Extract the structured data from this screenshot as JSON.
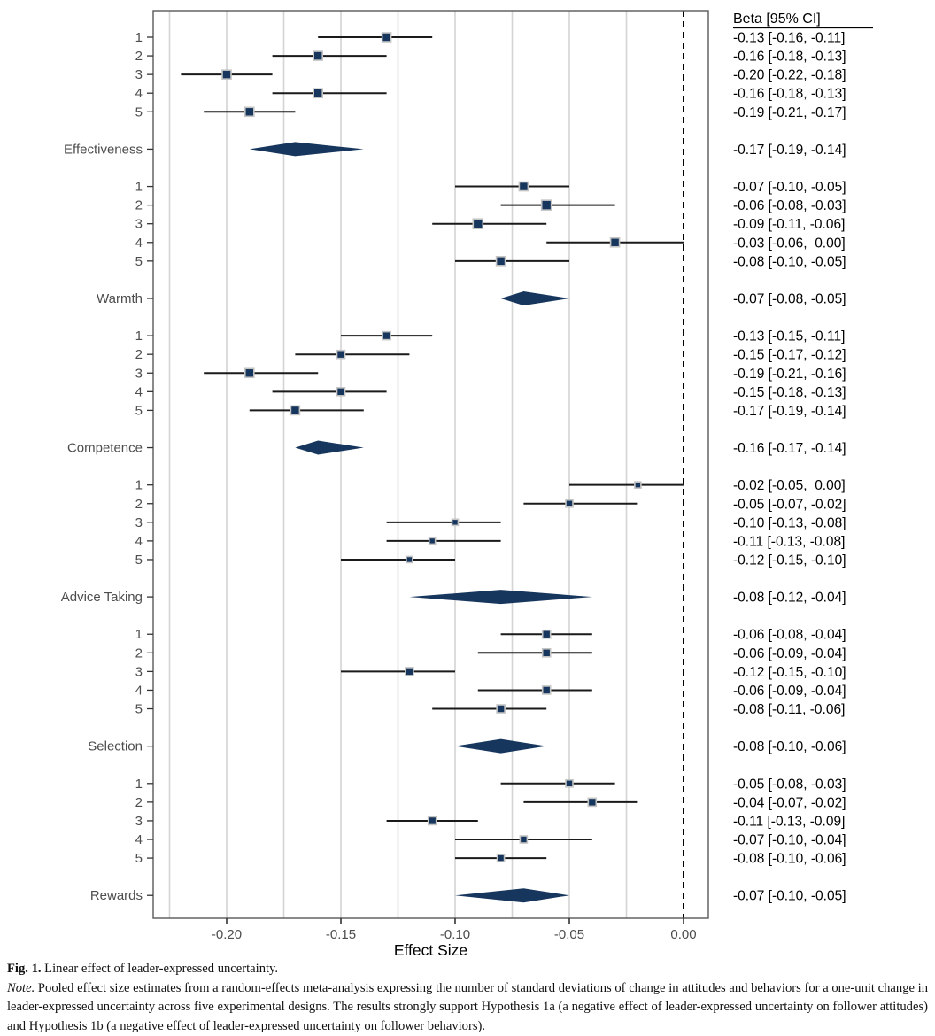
{
  "chart_data": {
    "type": "forest",
    "xlabel": "Effect Size",
    "column_header": "Beta [95% CI]",
    "x_ticks": [
      -0.2,
      -0.15,
      -0.1,
      -0.05,
      0.0
    ],
    "x_tick_labels": [
      "-0.20",
      "-0.15",
      "-0.10",
      "-0.05",
      "0.00"
    ],
    "xlim": [
      -0.232,
      0.011
    ],
    "gridlines": [
      -0.225,
      -0.2,
      -0.175,
      -0.15,
      -0.125,
      -0.1,
      -0.075,
      -0.05,
      -0.025
    ],
    "zero_line": 0.0,
    "grid_on": true,
    "colors": {
      "marker": "#17365d",
      "marker_stroke": "#c4c4c4",
      "ci_line": "#1a1a1a",
      "grid": "#d4d4d4",
      "panel_border": "#595959",
      "axis_text": "#4d4d4d",
      "label_text": "#4d4d4d",
      "beta_text": "#000000",
      "zero_line": "#000000",
      "tick": "#333333"
    },
    "groups": [
      {
        "name": "Effectiveness",
        "studies": [
          {
            "label": "1",
            "beta": -0.13,
            "lo": -0.16,
            "hi": -0.11,
            "size": 10,
            "text": "-0.13 [-0.16, -0.11]"
          },
          {
            "label": "2",
            "beta": -0.16,
            "lo": -0.18,
            "hi": -0.13,
            "size": 10,
            "text": "-0.16 [-0.18, -0.13]"
          },
          {
            "label": "3",
            "beta": -0.2,
            "lo": -0.22,
            "hi": -0.18,
            "size": 10,
            "text": "-0.20 [-0.22, -0.18]"
          },
          {
            "label": "4",
            "beta": -0.16,
            "lo": -0.18,
            "hi": -0.13,
            "size": 10,
            "text": "-0.16 [-0.18, -0.13]"
          },
          {
            "label": "5",
            "beta": -0.19,
            "lo": -0.21,
            "hi": -0.17,
            "size": 10,
            "text": "-0.19 [-0.21, -0.17]"
          }
        ],
        "summary": {
          "beta": -0.17,
          "lo": -0.19,
          "hi": -0.14,
          "text": "-0.17 [-0.19, -0.14]"
        }
      },
      {
        "name": "Warmth",
        "studies": [
          {
            "label": "1",
            "beta": -0.07,
            "lo": -0.1,
            "hi": -0.05,
            "size": 10,
            "text": "-0.07 [-0.10, -0.05]"
          },
          {
            "label": "2",
            "beta": -0.06,
            "lo": -0.08,
            "hi": -0.03,
            "size": 11,
            "text": "-0.06 [-0.08, -0.03]"
          },
          {
            "label": "3",
            "beta": -0.09,
            "lo": -0.11,
            "hi": -0.06,
            "size": 11,
            "text": "-0.09 [-0.11, -0.06]"
          },
          {
            "label": "4",
            "beta": -0.03,
            "lo": -0.06,
            "hi": 0.0,
            "size": 10,
            "text": "-0.03 [-0.06,  0.00]"
          },
          {
            "label": "5",
            "beta": -0.08,
            "lo": -0.1,
            "hi": -0.05,
            "size": 10,
            "text": "-0.08 [-0.10, -0.05]"
          }
        ],
        "summary": {
          "beta": -0.07,
          "lo": -0.08,
          "hi": -0.05,
          "text": "-0.07 [-0.08, -0.05]"
        }
      },
      {
        "name": "Competence",
        "studies": [
          {
            "label": "1",
            "beta": -0.13,
            "lo": -0.15,
            "hi": -0.11,
            "size": 9,
            "text": "-0.13 [-0.15, -0.11]"
          },
          {
            "label": "2",
            "beta": -0.15,
            "lo": -0.17,
            "hi": -0.12,
            "size": 9,
            "text": "-0.15 [-0.17, -0.12]"
          },
          {
            "label": "3",
            "beta": -0.19,
            "lo": -0.21,
            "hi": -0.16,
            "size": 10,
            "text": "-0.19 [-0.21, -0.16]"
          },
          {
            "label": "4",
            "beta": -0.15,
            "lo": -0.18,
            "hi": -0.13,
            "size": 9,
            "text": "-0.15 [-0.18, -0.13]"
          },
          {
            "label": "5",
            "beta": -0.17,
            "lo": -0.19,
            "hi": -0.14,
            "size": 10,
            "text": "-0.17 [-0.19, -0.14]"
          }
        ],
        "summary": {
          "beta": -0.16,
          "lo": -0.17,
          "hi": -0.14,
          "text": "-0.16 [-0.17, -0.14]"
        }
      },
      {
        "name": "Advice Taking",
        "studies": [
          {
            "label": "1",
            "beta": -0.02,
            "lo": -0.05,
            "hi": 0.0,
            "size": 7,
            "text": "-0.02 [-0.05,  0.00]"
          },
          {
            "label": "2",
            "beta": -0.05,
            "lo": -0.07,
            "hi": -0.02,
            "size": 8,
            "text": "-0.05 [-0.07, -0.02]"
          },
          {
            "label": "3",
            "beta": -0.1,
            "lo": -0.13,
            "hi": -0.08,
            "size": 7,
            "text": "-0.10 [-0.13, -0.08]"
          },
          {
            "label": "4",
            "beta": -0.11,
            "lo": -0.13,
            "hi": -0.08,
            "size": 7,
            "text": "-0.11 [-0.13, -0.08]"
          },
          {
            "label": "5",
            "beta": -0.12,
            "lo": -0.15,
            "hi": -0.1,
            "size": 7,
            "text": "-0.12 [-0.15, -0.10]"
          }
        ],
        "summary": {
          "beta": -0.08,
          "lo": -0.12,
          "hi": -0.04,
          "text": "-0.08 [-0.12, -0.04]"
        }
      },
      {
        "name": "Selection",
        "studies": [
          {
            "label": "1",
            "beta": -0.06,
            "lo": -0.08,
            "hi": -0.04,
            "size": 9,
            "text": "-0.06 [-0.08, -0.04]"
          },
          {
            "label": "2",
            "beta": -0.06,
            "lo": -0.09,
            "hi": -0.04,
            "size": 9,
            "text": "-0.06 [-0.09, -0.04]"
          },
          {
            "label": "3",
            "beta": -0.12,
            "lo": -0.15,
            "hi": -0.1,
            "size": 9,
            "text": "-0.12 [-0.15, -0.10]"
          },
          {
            "label": "4",
            "beta": -0.06,
            "lo": -0.09,
            "hi": -0.04,
            "size": 9,
            "text": "-0.06 [-0.09, -0.04]"
          },
          {
            "label": "5",
            "beta": -0.08,
            "lo": -0.11,
            "hi": -0.06,
            "size": 9,
            "text": "-0.08 [-0.11, -0.06]"
          }
        ],
        "summary": {
          "beta": -0.08,
          "lo": -0.1,
          "hi": -0.06,
          "text": "-0.08 [-0.10, -0.06]"
        }
      },
      {
        "name": "Rewards",
        "studies": [
          {
            "label": "1",
            "beta": -0.05,
            "lo": -0.08,
            "hi": -0.03,
            "size": 8,
            "text": "-0.05 [-0.08, -0.03]"
          },
          {
            "label": "2",
            "beta": -0.04,
            "lo": -0.07,
            "hi": -0.02,
            "size": 9,
            "text": "-0.04 [-0.07, -0.02]"
          },
          {
            "label": "3",
            "beta": -0.11,
            "lo": -0.13,
            "hi": -0.09,
            "size": 9,
            "text": "-0.11 [-0.13, -0.09]"
          },
          {
            "label": "4",
            "beta": -0.07,
            "lo": -0.1,
            "hi": -0.04,
            "size": 8,
            "text": "-0.07 [-0.10, -0.04]"
          },
          {
            "label": "5",
            "beta": -0.08,
            "lo": -0.1,
            "hi": -0.06,
            "size": 8,
            "text": "-0.08 [-0.10, -0.06]"
          }
        ],
        "summary": {
          "beta": -0.07,
          "lo": -0.1,
          "hi": -0.05,
          "text": "-0.07 [-0.10, -0.05]"
        }
      }
    ]
  },
  "caption": {
    "fig_label": "Fig. 1.",
    "fig_title": "Linear effect of leader-expressed uncertainty.",
    "note_label": "Note.",
    "note_text": "Pooled effect size estimates from a random-effects meta-analysis expressing the number of standard deviations of change in attitudes and behaviors for a one-unit change in leader-expressed uncertainty across five experimental designs. The results strongly support Hypothesis 1a (a negative effect of leader-expressed uncertainty on follower attitudes) and Hypothesis 1b (a negative effect of leader-expressed uncertainty on follower behaviors)."
  }
}
